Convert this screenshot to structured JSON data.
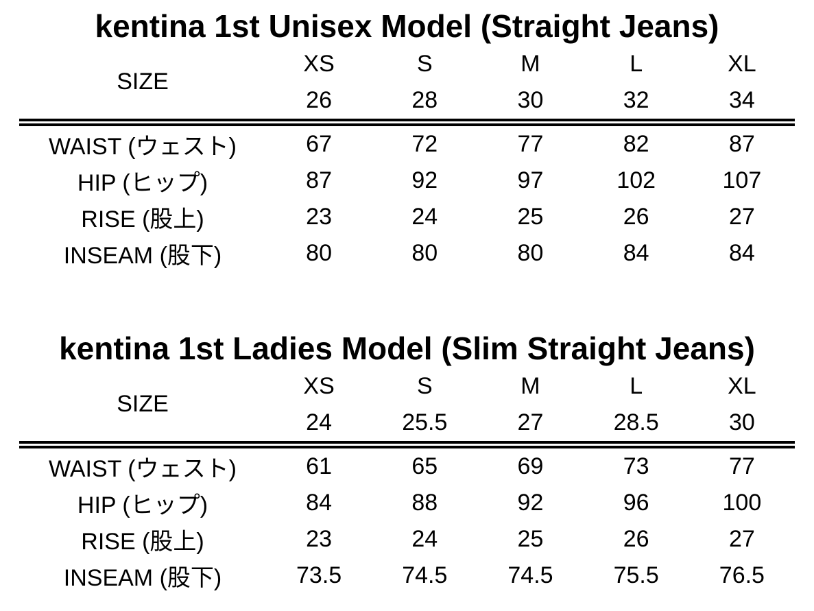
{
  "page": {
    "background_color": "#ffffff",
    "text_color": "#000000"
  },
  "tables": [
    {
      "title": "kentina 1st Unisex Model (Straight Jeans)",
      "size_label": "SIZE",
      "size_names": [
        "XS",
        "S",
        "M",
        "L",
        "XL"
      ],
      "size_numbers": [
        "26",
        "28",
        "30",
        "32",
        "34"
      ],
      "rows": [
        {
          "label": "WAIST (ウェスト)",
          "values": [
            "67",
            "72",
            "77",
            "82",
            "87"
          ]
        },
        {
          "label": "HIP (ヒップ)",
          "values": [
            "87",
            "92",
            "97",
            "102",
            "107"
          ]
        },
        {
          "label": "RISE (股上)",
          "values": [
            "23",
            "24",
            "25",
            "26",
            "27"
          ]
        },
        {
          "label": "INSEAM (股下)",
          "values": [
            "80",
            "80",
            "80",
            "84",
            "84"
          ]
        }
      ]
    },
    {
      "title": "kentina 1st Ladies Model (Slim Straight Jeans)",
      "size_label": "SIZE",
      "size_names": [
        "XS",
        "S",
        "M",
        "L",
        "XL"
      ],
      "size_numbers": [
        "24",
        "25.5",
        "27",
        "28.5",
        "30"
      ],
      "rows": [
        {
          "label": "WAIST (ウェスト)",
          "values": [
            "61",
            "65",
            "69",
            "73",
            "77"
          ]
        },
        {
          "label": "HIP (ヒップ)",
          "values": [
            "84",
            "88",
            "92",
            "96",
            "100"
          ]
        },
        {
          "label": "RISE (股上)",
          "values": [
            "23",
            "24",
            "25",
            "26",
            "27"
          ]
        },
        {
          "label": "INSEAM (股下)",
          "values": [
            "73.5",
            "74.5",
            "74.5",
            "75.5",
            "76.5"
          ]
        }
      ]
    }
  ]
}
